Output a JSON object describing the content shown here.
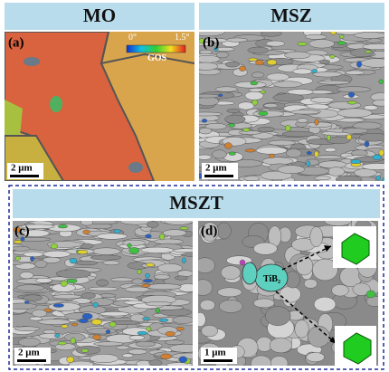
{
  "panels": [
    {
      "header": "MO",
      "label": "(a)",
      "scale": "2 μm"
    },
    {
      "header": "MSZ",
      "label": "(b)",
      "scale": "2 μm"
    },
    {
      "label": "(c)",
      "scale": "2 μm"
    },
    {
      "label": "(d)",
      "scale": "1 μm"
    }
  ],
  "colorbar": {
    "min": "0°",
    "max": "1.5°",
    "title": "GOS"
  },
  "section": {
    "header": "MSZT"
  },
  "annotation": "TiB₂"
}
